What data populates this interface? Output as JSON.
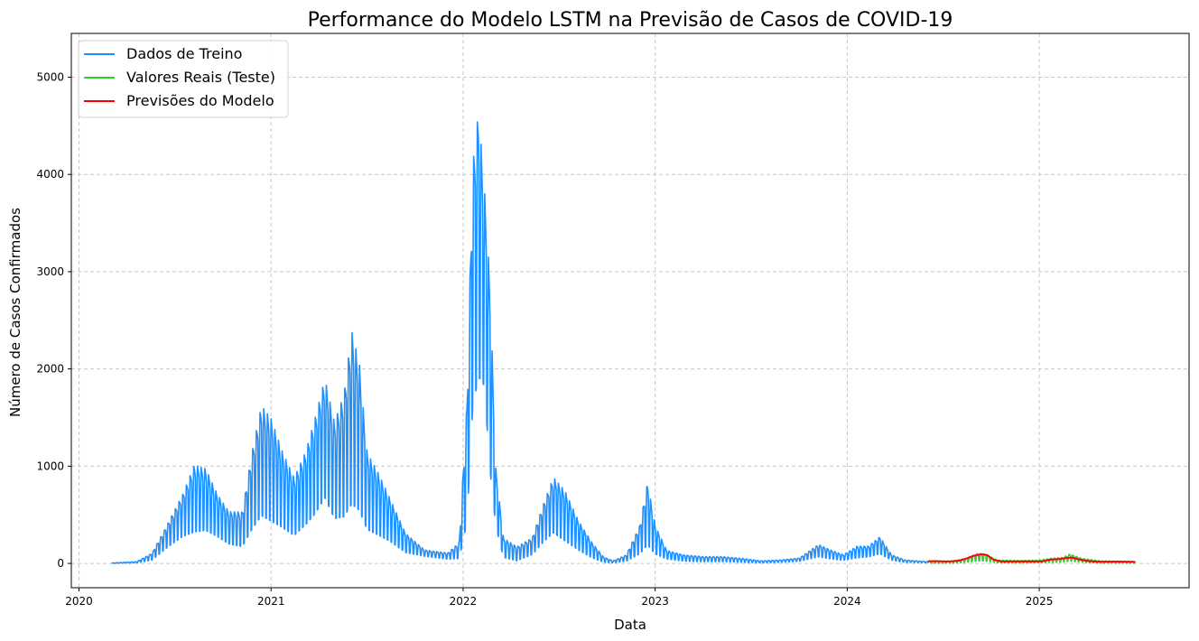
{
  "chart_data": {
    "type": "line",
    "title": "Performance do Modelo LSTM na Previsão de Casos de COVID-19",
    "xlabel": "Data",
    "ylabel": "Número de Casos Confirmados",
    "xlim": [
      2019.96,
      2025.78
    ],
    "ylim": [
      -250,
      5450
    ],
    "x_ticks": [
      2020,
      2021,
      2022,
      2023,
      2024,
      2025
    ],
    "x_tick_labels": [
      "2020",
      "2021",
      "2022",
      "2023",
      "2024",
      "2025"
    ],
    "y_ticks": [
      0,
      1000,
      2000,
      3000,
      4000,
      5000
    ],
    "y_tick_labels": [
      "0",
      "1000",
      "2000",
      "3000",
      "4000",
      "5000"
    ],
    "grid": true,
    "legend_position": "top-left",
    "series": [
      {
        "name": "Dados de Treino",
        "color": "#1e90ff",
        "style": "weekly-oscillation",
        "x_start": 2020.17,
        "x_end": 2024.42,
        "upper_envelope": [
          [
            2020.17,
            5
          ],
          [
            2020.3,
            20
          ],
          [
            2020.38,
            120
          ],
          [
            2020.46,
            450
          ],
          [
            2020.54,
            800
          ],
          [
            2020.6,
            1150
          ],
          [
            2020.66,
            1100
          ],
          [
            2020.72,
            800
          ],
          [
            2020.78,
            600
          ],
          [
            2020.85,
            600
          ],
          [
            2020.9,
            1300
          ],
          [
            2020.95,
            1850
          ],
          [
            2021.0,
            1700
          ],
          [
            2021.06,
            1300
          ],
          [
            2021.12,
            1000
          ],
          [
            2021.18,
            1300
          ],
          [
            2021.23,
            1700
          ],
          [
            2021.28,
            2150
          ],
          [
            2021.33,
            1650
          ],
          [
            2021.38,
            2000
          ],
          [
            2021.42,
            2750
          ],
          [
            2021.46,
            2350
          ],
          [
            2021.5,
            1300
          ],
          [
            2021.56,
            1050
          ],
          [
            2021.62,
            750
          ],
          [
            2021.7,
            350
          ],
          [
            2021.8,
            150
          ],
          [
            2021.92,
            120
          ],
          [
            2021.98,
            250
          ],
          [
            2022.02,
            1900
          ],
          [
            2022.05,
            4600
          ],
          [
            2022.08,
            5200
          ],
          [
            2022.11,
            4300
          ],
          [
            2022.14,
            3250
          ],
          [
            2022.17,
            1100
          ],
          [
            2022.21,
            300
          ],
          [
            2022.28,
            200
          ],
          [
            2022.36,
            300
          ],
          [
            2022.42,
            700
          ],
          [
            2022.47,
            1000
          ],
          [
            2022.53,
            850
          ],
          [
            2022.6,
            500
          ],
          [
            2022.67,
            250
          ],
          [
            2022.73,
            80
          ],
          [
            2022.78,
            30
          ],
          [
            2022.85,
            100
          ],
          [
            2022.92,
            450
          ],
          [
            2022.96,
            960
          ],
          [
            2023.0,
            450
          ],
          [
            2023.06,
            150
          ],
          [
            2023.15,
            100
          ],
          [
            2023.25,
            80
          ],
          [
            2023.35,
            80
          ],
          [
            2023.45,
            60
          ],
          [
            2023.55,
            30
          ],
          [
            2023.65,
            40
          ],
          [
            2023.75,
            60
          ],
          [
            2023.85,
            220
          ],
          [
            2023.92,
            150
          ],
          [
            2023.98,
            100
          ],
          [
            2024.05,
            200
          ],
          [
            2024.11,
            200
          ],
          [
            2024.17,
            310
          ],
          [
            2024.23,
            100
          ],
          [
            2024.3,
            40
          ],
          [
            2024.42,
            20
          ]
        ],
        "lower_envelope": [
          [
            2020.17,
            0
          ],
          [
            2020.3,
            5
          ],
          [
            2020.38,
            30
          ],
          [
            2020.46,
            150
          ],
          [
            2020.54,
            250
          ],
          [
            2020.6,
            280
          ],
          [
            2020.66,
            300
          ],
          [
            2020.72,
            250
          ],
          [
            2020.78,
            180
          ],
          [
            2020.85,
            150
          ],
          [
            2020.9,
            300
          ],
          [
            2020.95,
            420
          ],
          [
            2021.0,
            370
          ],
          [
            2021.06,
            320
          ],
          [
            2021.12,
            250
          ],
          [
            2021.18,
            350
          ],
          [
            2021.23,
            450
          ],
          [
            2021.28,
            600
          ],
          [
            2021.33,
            400
          ],
          [
            2021.38,
            400
          ],
          [
            2021.42,
            500
          ],
          [
            2021.46,
            450
          ],
          [
            2021.5,
            300
          ],
          [
            2021.56,
            250
          ],
          [
            2021.62,
            200
          ],
          [
            2021.7,
            100
          ],
          [
            2021.8,
            70
          ],
          [
            2021.92,
            40
          ],
          [
            2021.98,
            40
          ],
          [
            2022.02,
            350
          ],
          [
            2022.05,
            1450
          ],
          [
            2022.08,
            1750
          ],
          [
            2022.11,
            1700
          ],
          [
            2022.14,
            850
          ],
          [
            2022.17,
            350
          ],
          [
            2022.21,
            50
          ],
          [
            2022.28,
            20
          ],
          [
            2022.36,
            80
          ],
          [
            2022.42,
            200
          ],
          [
            2022.47,
            280
          ],
          [
            2022.53,
            200
          ],
          [
            2022.6,
            120
          ],
          [
            2022.67,
            50
          ],
          [
            2022.73,
            10
          ],
          [
            2022.78,
            5
          ],
          [
            2022.85,
            20
          ],
          [
            2022.92,
            80
          ],
          [
            2022.96,
            150
          ],
          [
            2023.0,
            80
          ],
          [
            2023.06,
            40
          ],
          [
            2023.15,
            20
          ],
          [
            2023.25,
            15
          ],
          [
            2023.35,
            15
          ],
          [
            2023.45,
            10
          ],
          [
            2023.55,
            5
          ],
          [
            2023.65,
            10
          ],
          [
            2023.75,
            20
          ],
          [
            2023.85,
            60
          ],
          [
            2023.92,
            40
          ],
          [
            2023.98,
            30
          ],
          [
            2024.05,
            50
          ],
          [
            2024.11,
            60
          ],
          [
            2024.17,
            90
          ],
          [
            2024.23,
            30
          ],
          [
            2024.3,
            10
          ],
          [
            2024.42,
            5
          ]
        ]
      },
      {
        "name": "Valores Reais (Teste)",
        "color": "#32cd32",
        "style": "weekly-oscillation",
        "x_start": 2024.42,
        "x_end": 2025.5,
        "upper_envelope": [
          [
            2024.42,
            30
          ],
          [
            2024.55,
            30
          ],
          [
            2024.62,
            60
          ],
          [
            2024.68,
            120
          ],
          [
            2024.72,
            110
          ],
          [
            2024.78,
            40
          ],
          [
            2024.9,
            35
          ],
          [
            2025.0,
            40
          ],
          [
            2025.06,
            60
          ],
          [
            2025.12,
            70
          ],
          [
            2025.16,
            110
          ],
          [
            2025.22,
            60
          ],
          [
            2025.32,
            30
          ],
          [
            2025.5,
            25
          ]
        ],
        "lower_envelope": [
          [
            2024.42,
            0
          ],
          [
            2024.55,
            0
          ],
          [
            2024.62,
            10
          ],
          [
            2024.68,
            20
          ],
          [
            2024.72,
            20
          ],
          [
            2024.78,
            5
          ],
          [
            2024.9,
            0
          ],
          [
            2025.0,
            5
          ],
          [
            2025.06,
            10
          ],
          [
            2025.12,
            10
          ],
          [
            2025.16,
            20
          ],
          [
            2025.22,
            10
          ],
          [
            2025.32,
            0
          ],
          [
            2025.5,
            0
          ]
        ]
      },
      {
        "name": "Previsões do Modelo",
        "color": "#ff0000",
        "style": "smooth",
        "points": [
          [
            2024.42,
            22
          ],
          [
            2024.46,
            24
          ],
          [
            2024.5,
            20
          ],
          [
            2024.54,
            22
          ],
          [
            2024.58,
            28
          ],
          [
            2024.62,
            50
          ],
          [
            2024.66,
            80
          ],
          [
            2024.7,
            95
          ],
          [
            2024.73,
            85
          ],
          [
            2024.76,
            40
          ],
          [
            2024.8,
            20
          ],
          [
            2024.86,
            20
          ],
          [
            2024.92,
            22
          ],
          [
            2024.98,
            20
          ],
          [
            2025.02,
            22
          ],
          [
            2025.06,
            40
          ],
          [
            2025.1,
            45
          ],
          [
            2025.14,
            55
          ],
          [
            2025.17,
            60
          ],
          [
            2025.2,
            45
          ],
          [
            2025.25,
            25
          ],
          [
            2025.3,
            18
          ],
          [
            2025.36,
            18
          ],
          [
            2025.42,
            18
          ],
          [
            2025.5,
            16
          ]
        ]
      }
    ]
  }
}
